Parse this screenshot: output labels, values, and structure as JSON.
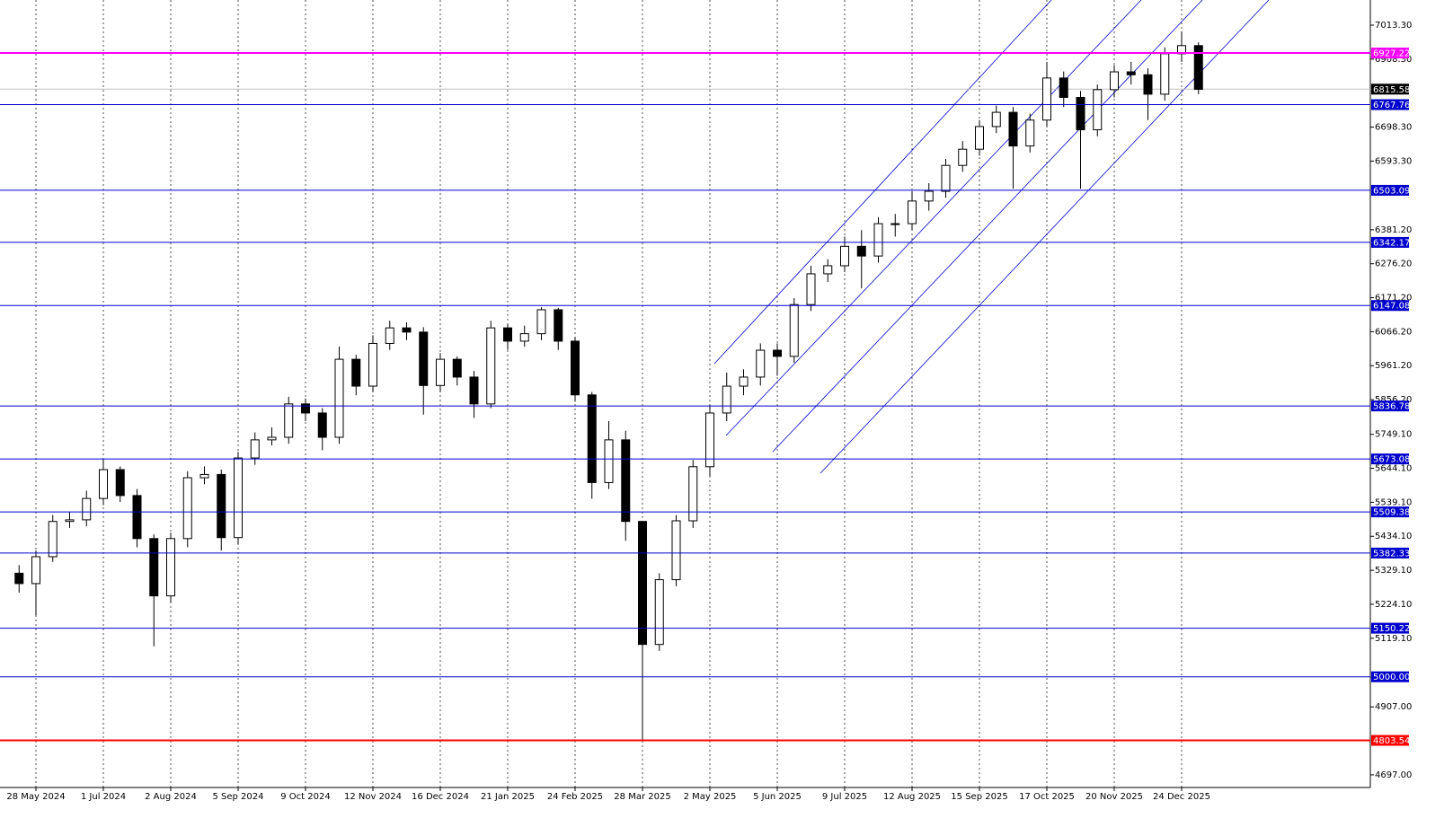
{
  "chart_data": {
    "type": "candlestick",
    "categories": [
      null,
      "28 May 2024",
      null,
      null,
      null,
      "1 Jul 2024",
      null,
      null,
      null,
      "2 Aug 2024",
      null,
      null,
      null,
      "5 Sep 2024",
      null,
      null,
      null,
      "9 Oct 2024",
      null,
      null,
      null,
      "12 Nov 2024",
      null,
      null,
      null,
      "16 Dec 2024",
      null,
      null,
      null,
      "21 Jan 2025",
      null,
      null,
      null,
      "24 Feb 2025",
      null,
      null,
      null,
      "28 Mar 2025",
      null,
      null,
      null,
      "2 May 2025",
      null,
      null,
      null,
      "5 Jun 2025",
      null,
      null,
      null,
      "9 Jul 2025",
      null,
      null,
      null,
      "12 Aug 2025",
      null,
      null,
      null,
      "15 Sep 2025",
      null,
      null,
      null,
      "17 Oct 2025",
      null,
      null,
      null,
      "20 Nov 2025",
      null,
      null,
      null,
      "24 Dec 2025",
      null
    ],
    "open": [
      5320,
      5288,
      5371,
      5480,
      5485,
      5551,
      5640,
      5560,
      5427,
      5250,
      5427,
      5615,
      5625,
      5430,
      5676,
      5732,
      5740,
      5843,
      5815,
      5740,
      5981,
      5898,
      6030,
      6078,
      6065,
      5900,
      5981,
      5926,
      5843,
      6078,
      6037,
      6060,
      6134,
      6037,
      5871,
      5600,
      5732,
      5480,
      5100,
      5300,
      5482,
      5649,
      5815,
      5898,
      5926,
      6009,
      5990,
      6150,
      6245,
      6270,
      6330,
      6300,
      6400,
      6400,
      6470,
      6500,
      6580,
      6630,
      6700,
      6744,
      6640,
      6720,
      6850,
      6790,
      6690,
      6814,
      6869,
      6860,
      6800,
      6925,
      6950
    ],
    "high": [
      5345,
      5390,
      5500,
      5510,
      5575,
      5671,
      5650,
      5580,
      5440,
      5445,
      5635,
      5650,
      5640,
      5695,
      5755,
      5770,
      5865,
      5860,
      5830,
      6020,
      5995,
      6055,
      6100,
      6095,
      6080,
      6000,
      5990,
      5945,
      6100,
      6090,
      6085,
      6142,
      6140,
      6050,
      5880,
      5790,
      5760,
      5480,
      5320,
      5500,
      5670,
      5840,
      5940,
      5950,
      6030,
      6030,
      6170,
      6270,
      6290,
      6360,
      6380,
      6420,
      6430,
      6500,
      6525,
      6600,
      6655,
      6720,
      6765,
      6760,
      6740,
      6900,
      6870,
      6810,
      6830,
      6890,
      6900,
      6880,
      6945,
      6994,
      6960
    ],
    "low": [
      5260,
      5190,
      5355,
      5460,
      5465,
      5530,
      5540,
      5400,
      5094,
      5230,
      5400,
      5595,
      5390,
      5410,
      5655,
      5715,
      5720,
      5790,
      5700,
      5720,
      5870,
      5880,
      6010,
      6040,
      5810,
      5880,
      5900,
      5800,
      5830,
      6010,
      6020,
      6040,
      6010,
      5850,
      5550,
      5580,
      5420,
      4803.54,
      5080,
      5280,
      5460,
      5620,
      5790,
      5870,
      5900,
      5930,
      5970,
      6130,
      6220,
      6250,
      6200,
      6280,
      6360,
      6380,
      6440,
      6480,
      6560,
      6610,
      6680,
      6508,
      6620,
      6700,
      6760,
      6508,
      6670,
      6790,
      6830,
      6720,
      6780,
      6900,
      6800
    ],
    "close": [
      5288,
      5371,
      5480,
      5485,
      5551,
      5640,
      5560,
      5427,
      5250,
      5427,
      5615,
      5625,
      5430,
      5676,
      5732,
      5740,
      5843,
      5815,
      5740,
      5981,
      5898,
      6030,
      6078,
      6065,
      5900,
      5981,
      5926,
      5843,
      6078,
      6037,
      6060,
      6134,
      6037,
      5871,
      5600,
      5732,
      5480,
      5100,
      5300,
      5482,
      5649,
      5815,
      5898,
      5926,
      6009,
      5990,
      6150,
      6245,
      6270,
      6330,
      6300,
      6400,
      6400,
      6470,
      6500,
      6580,
      6630,
      6700,
      6744,
      6640,
      6720,
      6850,
      6790,
      6690,
      6814,
      6869,
      6860,
      6800,
      6925,
      6950,
      6815
    ],
    "up_color": "#ffffff",
    "down_color": "#000000",
    "ylim": [
      4658,
      7091
    ],
    "yticks": [
      {
        "value": 7013.3,
        "label": "7013.30"
      },
      {
        "value": 6908.3,
        "label": "6908.30"
      },
      {
        "value": 6698.3,
        "label": "6698.30"
      },
      {
        "value": 6593.3,
        "label": "6593.30"
      },
      {
        "value": 6381.2,
        "label": "6381.20"
      },
      {
        "value": 6276.2,
        "label": "6276.20"
      },
      {
        "value": 6171.2,
        "label": "6171.20"
      },
      {
        "value": 6066.2,
        "label": "6066.20"
      },
      {
        "value": 5961.2,
        "label": "5961.20"
      },
      {
        "value": 5856.2,
        "label": "5856.20"
      },
      {
        "value": 5749.1,
        "label": "5749.10"
      },
      {
        "value": 5644.1,
        "label": "5644.10"
      },
      {
        "value": 5539.1,
        "label": "5539.10"
      },
      {
        "value": 5434.1,
        "label": "5434.10"
      },
      {
        "value": 5329.1,
        "label": "5329.10"
      },
      {
        "value": 5224.1,
        "label": "5224.10"
      },
      {
        "value": 5119.1,
        "label": "5119.10"
      },
      {
        "value": 4907,
        "label": "4907.00"
      },
      {
        "value": 4697,
        "label": "4697.00"
      }
    ],
    "grid": true,
    "levels": [
      {
        "value": 6927.22,
        "color": "#ff00ff"
      },
      {
        "value": 6767.76,
        "color": "#0000cc"
      },
      {
        "value": 6503.09,
        "color": "#0000cc"
      },
      {
        "value": 6342.17,
        "color": "#0000cc"
      },
      {
        "value": 6147.08,
        "color": "#0000cc"
      },
      {
        "value": 5836.78,
        "color": "#0000cc"
      },
      {
        "value": 5673.08,
        "color": "#0000cc"
      },
      {
        "value": 5509.38,
        "color": "#0000cc"
      },
      {
        "value": 5382.33,
        "color": "#0000cc"
      },
      {
        "value": 5150.22,
        "color": "#0000cc"
      },
      {
        "value": 5000,
        "label": "5000.00",
        "color": "#0000cc"
      },
      {
        "value": 4803.54,
        "color": "#ff0000"
      }
    ],
    "last_price": {
      "value": 6815.58,
      "color": "#c0c0c0"
    }
  }
}
